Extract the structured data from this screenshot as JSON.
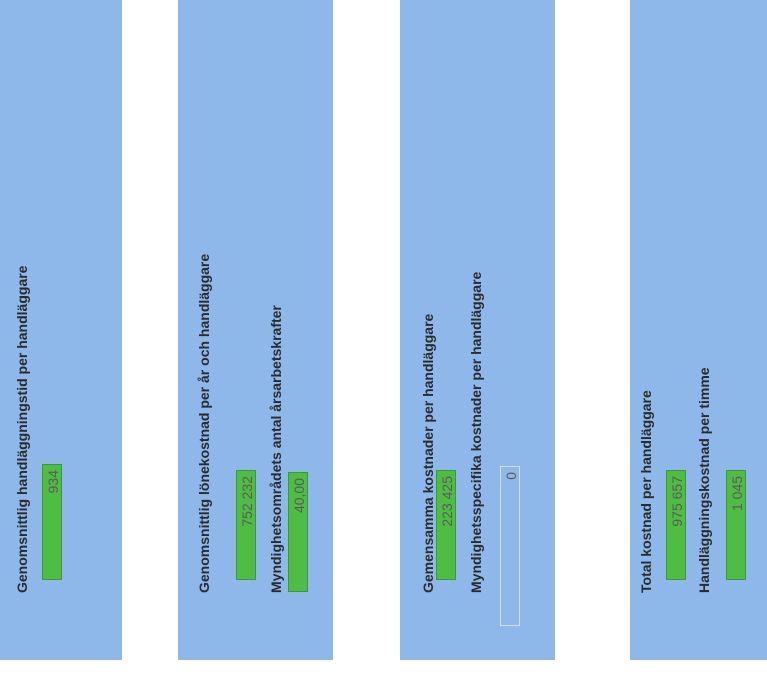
{
  "panels": [
    {
      "fields": [
        {
          "label": "Genomsnittlig handläggningstid per handläggare",
          "value": "934"
        }
      ]
    },
    {
      "fields": [
        {
          "label": "Genomsnittlig lönekostnad per år och handläggare",
          "value": "752 232"
        },
        {
          "label": "Myndighetsområdets antal årsarbetskrafter",
          "value": "40,00"
        }
      ]
    },
    {
      "fields": [
        {
          "label": "Gemensamma kostnader per handläggare",
          "value": "223 425"
        },
        {
          "label": "Myndighetsspecifika kostnader per handläggare",
          "value": "0"
        }
      ]
    },
    {
      "fields": [
        {
          "label": "Total kostnad per handläggare",
          "value": "975 657"
        },
        {
          "label": "Handläggningskostnad per timme",
          "value": "1 045"
        }
      ]
    }
  ]
}
